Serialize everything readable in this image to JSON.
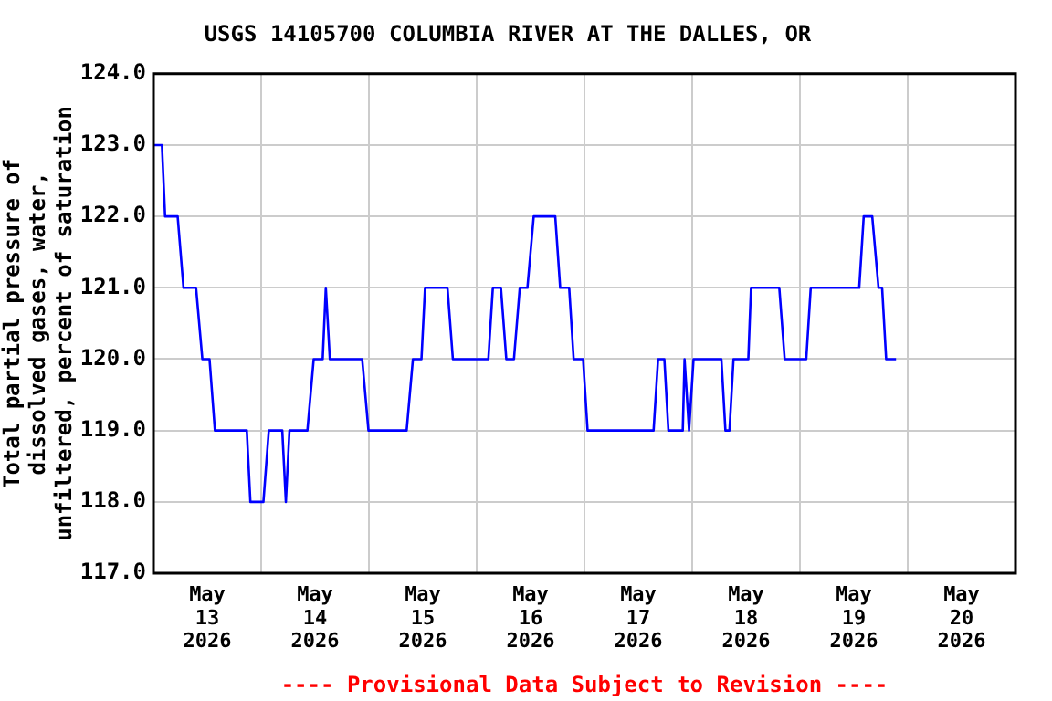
{
  "chart_data": {
    "type": "line",
    "title": "USGS 14105700 COLUMBIA RIVER AT THE DALLES, OR",
    "ylabel": "Total partial pressure of dissolved gases, water, unfiltered, percent of saturation",
    "annotations": [
      "---- Provisional Data Subject to Revision ----"
    ],
    "series": [
      {
        "color": "#0000ff",
        "x": [
          "2026-05-13T00:00",
          "2026-05-13T01:54",
          "2026-05-13T02:36",
          "2026-05-13T05:24",
          "2026-05-13T06:42",
          "2026-05-13T09:30",
          "2026-05-13T10:54",
          "2026-05-13T12:30",
          "2026-05-13T13:42",
          "2026-05-13T20:48",
          "2026-05-13T21:36",
          "2026-05-14T00:30",
          "2026-05-14T01:42",
          "2026-05-14T04:42",
          "2026-05-14T05:30",
          "2026-05-14T06:18",
          "2026-05-14T10:18",
          "2026-05-14T11:42",
          "2026-05-14T13:42",
          "2026-05-14T14:24",
          "2026-05-14T15:18",
          "2026-05-14T22:30",
          "2026-05-14T23:54",
          "2026-05-15T08:24",
          "2026-05-15T09:48",
          "2026-05-15T11:42",
          "2026-05-15T12:30",
          "2026-05-15T17:30",
          "2026-05-15T18:42",
          "2026-05-16T02:36",
          "2026-05-16T03:36",
          "2026-05-16T05:24",
          "2026-05-16T06:36",
          "2026-05-16T08:18",
          "2026-05-16T09:36",
          "2026-05-16T11:18",
          "2026-05-16T12:42",
          "2026-05-16T17:30",
          "2026-05-16T18:36",
          "2026-05-16T20:36",
          "2026-05-16T21:36",
          "2026-05-16T23:42",
          "2026-05-17T00:42",
          "2026-05-17T15:24",
          "2026-05-17T16:24",
          "2026-05-17T17:48",
          "2026-05-17T18:42",
          "2026-05-17T21:54",
          "2026-05-17T22:18",
          "2026-05-17T23:18",
          "2026-05-18T00:18",
          "2026-05-18T06:30",
          "2026-05-18T07:24",
          "2026-05-18T08:18",
          "2026-05-18T09:12",
          "2026-05-18T12:30",
          "2026-05-18T13:06",
          "2026-05-18T19:24",
          "2026-05-18T20:36",
          "2026-05-19T01:24",
          "2026-05-19T02:24",
          "2026-05-19T13:12",
          "2026-05-19T14:12",
          "2026-05-19T16:06",
          "2026-05-19T17:30",
          "2026-05-19T18:18",
          "2026-05-19T19:12",
          "2026-05-19T21:24"
        ],
        "values": [
          123,
          123,
          122,
          122,
          121,
          121,
          120,
          120,
          119,
          119,
          118,
          118,
          119,
          119,
          118,
          119,
          119,
          120,
          120,
          121,
          120,
          120,
          119,
          119,
          120,
          120,
          121,
          121,
          120,
          120,
          121,
          121,
          120,
          120,
          121,
          121,
          122,
          122,
          121,
          121,
          120,
          120,
          119,
          119,
          120,
          120,
          119,
          119,
          120,
          119,
          120,
          120,
          119,
          119,
          120,
          120,
          121,
          121,
          120,
          120,
          121,
          121,
          122,
          122,
          121,
          121,
          120,
          120
        ]
      }
    ],
    "xlim": [
      "2026-05-13T00:00",
      "2026-05-21T00:00"
    ],
    "xticks": [
      {
        "value": "2026-05-13T12:00",
        "label": "May\n13\n2026"
      },
      {
        "value": "2026-05-14T00:00",
        "label": null
      },
      {
        "value": "2026-05-14T12:00",
        "label": "May\n14\n2026"
      },
      {
        "value": "2026-05-15T00:00",
        "label": null
      },
      {
        "value": "2026-05-15T12:00",
        "label": "May\n15\n2026"
      },
      {
        "value": "2026-05-16T00:00",
        "label": null
      },
      {
        "value": "2026-05-16T12:00",
        "label": "May\n16\n2026"
      },
      {
        "value": "2026-05-17T00:00",
        "label": null
      },
      {
        "value": "2026-05-17T12:00",
        "label": "May\n17\n2026"
      },
      {
        "value": "2026-05-18T00:00",
        "label": null
      },
      {
        "value": "2026-05-18T12:00",
        "label": "May\n18\n2026"
      },
      {
        "value": "2026-05-19T00:00",
        "label": null
      },
      {
        "value": "2026-05-19T12:00",
        "label": "May\n19\n2026"
      },
      {
        "value": "2026-05-20T00:00",
        "label": null
      },
      {
        "value": "2026-05-20T12:00",
        "label": "May\n20\n2026"
      }
    ],
    "ylim": [
      117,
      124
    ],
    "yticks": [
      {
        "value": 117,
        "label": "117.0"
      },
      {
        "value": 118,
        "label": "118.0"
      },
      {
        "value": 119,
        "label": "119.0"
      },
      {
        "value": 120,
        "label": "120.0"
      },
      {
        "value": 121,
        "label": "121.0"
      },
      {
        "value": 122,
        "label": "122.0"
      },
      {
        "value": 123,
        "label": "123.0"
      },
      {
        "value": 124,
        "label": "124.0"
      }
    ],
    "grid": true,
    "legend": false,
    "marker": "none",
    "line_style": "solid"
  }
}
